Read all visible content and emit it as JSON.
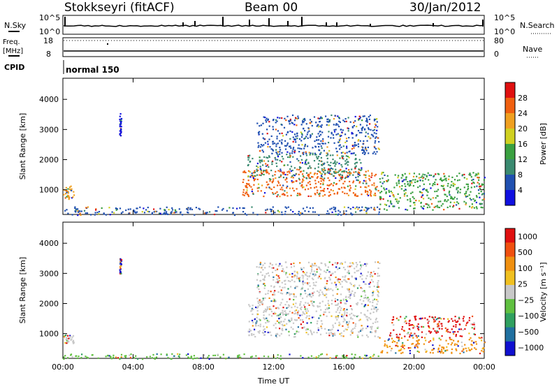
{
  "header": {
    "station": "Stokkseyri (fitACF)",
    "beam": "Beam 00",
    "date": "30/Jan/2012"
  },
  "top_panels": {
    "nsky_label": "N.Sky",
    "nsky_ticks": [
      "10^5",
      "10^0"
    ],
    "nsearch_label": "N.Search",
    "nsearch_ticks": [
      "10^5",
      "10^0"
    ],
    "freq_label_1": "Freq.",
    "freq_label_2": "[MHz]",
    "freq_ticks": [
      "18",
      "8"
    ],
    "nave_label": "Nave",
    "nave_ticks": [
      "80",
      "0"
    ],
    "cpid_label": "CPID",
    "cpid_value": "normal 150"
  },
  "chart_data": [
    {
      "type": "heatmap",
      "title": "",
      "xlabel": "",
      "ylabel": "Slant Range [km]",
      "yticks": [
        "1000",
        "2000",
        "3000",
        "4000"
      ],
      "ylim": [
        180,
        4700
      ],
      "colorbar_label": "Power [dB]",
      "colorbar_ticks": [
        "4",
        "8",
        "12",
        "16",
        "20",
        "24",
        "28"
      ],
      "colors": [
        "#1010e0",
        "#2050b0",
        "#3a8a70",
        "#3aa040",
        "#d0d020",
        "#f0a020",
        "#f06010",
        "#e01010"
      ],
      "regions": [
        {
          "t0": 0.0,
          "t1": 0.6,
          "r0": 700,
          "r1": 1150,
          "color": "#f0a020"
        },
        {
          "t0": 3.2,
          "t1": 3.3,
          "r0": 2800,
          "r1": 3550,
          "color": "#1010e0"
        },
        {
          "t0": 10.2,
          "t1": 18.0,
          "r0": 800,
          "r1": 1700,
          "color": "#f06010"
        },
        {
          "t0": 10.5,
          "t1": 17.0,
          "r0": 1400,
          "r1": 2200,
          "color": "#3a8a70"
        },
        {
          "t0": 11.0,
          "t1": 18.0,
          "r0": 2200,
          "r1": 3500,
          "color": "#2050b0"
        },
        {
          "t0": 18.0,
          "t1": 24.0,
          "r0": 350,
          "r1": 1600,
          "color": "#3aa040"
        },
        {
          "t0": 0.0,
          "t1": 18.0,
          "r0": 180,
          "r1": 450,
          "color": "#2050b0"
        }
      ]
    },
    {
      "type": "heatmap",
      "title": "",
      "xlabel": "Time UT",
      "ylabel": "Slant Range [km]",
      "xticks": [
        "00:00",
        "04:00",
        "08:00",
        "12:00",
        "16:00",
        "20:00",
        "00:00"
      ],
      "yticks": [
        "1000",
        "2000",
        "3000",
        "4000"
      ],
      "ylim": [
        180,
        4700
      ],
      "colorbar_label": "Velocity [m s⁻¹]",
      "colorbar_ticks": [
        "1000",
        "500",
        "100",
        "25",
        "−25",
        "−100",
        "−500",
        "−1000"
      ],
      "colors": [
        "#1010d0",
        "#2070a0",
        "#30a060",
        "#60c040",
        "#c8c8c8",
        "#f0c020",
        "#f09010",
        "#f05010",
        "#e01010"
      ],
      "regions": [
        {
          "t0": 0.0,
          "t1": 0.6,
          "r0": 700,
          "r1": 1000,
          "color": "#c8c8c8"
        },
        {
          "t0": 3.2,
          "t1": 3.3,
          "r0": 3000,
          "r1": 3550,
          "color": "#1010d0"
        },
        {
          "t0": 10.5,
          "t1": 18.0,
          "r0": 900,
          "r1": 2000,
          "color": "#c8c8c8"
        },
        {
          "t0": 11.0,
          "t1": 18.0,
          "r0": 2000,
          "r1": 3400,
          "color": "#c8c8c8"
        },
        {
          "t0": 18.0,
          "t1": 24.0,
          "r0": 350,
          "r1": 900,
          "color": "#f09010"
        },
        {
          "t0": 18.5,
          "t1": 23.5,
          "r0": 900,
          "r1": 1600,
          "color": "#e01010"
        },
        {
          "t0": 0.0,
          "t1": 18.0,
          "r0": 180,
          "r1": 350,
          "color": "#60c040"
        }
      ]
    }
  ]
}
